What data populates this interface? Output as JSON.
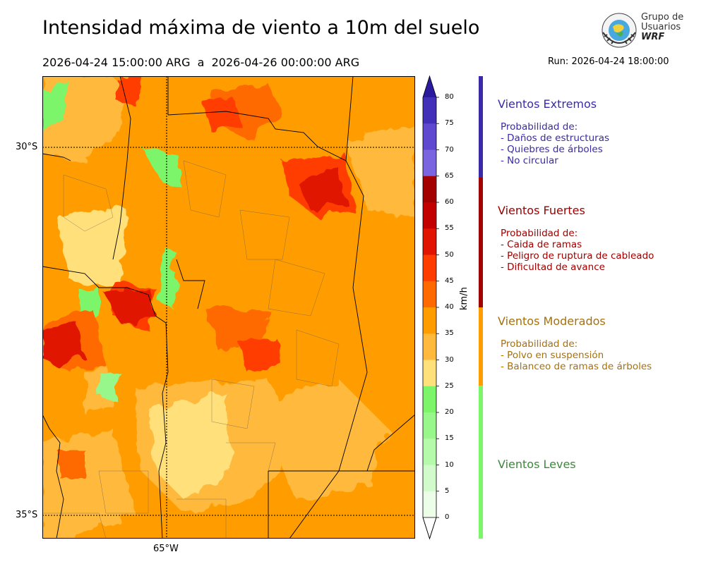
{
  "title": "Intensidad máxima de viento a 10m del suelo",
  "subtitle": "2026-04-24 15:00:00 ARG  a  2026-04-26 00:00:00 ARG",
  "run": "Run: 2026-04-24 18:00:00",
  "logo": {
    "line1": "Grupo de",
    "line2": "Usuarios",
    "line3": "WRF"
  },
  "map": {
    "lat_labels": [
      "30°S",
      "35°S"
    ],
    "lon_labels": [
      "65°W"
    ]
  },
  "colorbar": {
    "units": "km/h",
    "ticks": [
      "80",
      "75",
      "70",
      "65",
      "60",
      "55",
      "50",
      "45",
      "40",
      "35",
      "30",
      "25",
      "20",
      "15",
      "10",
      "5",
      "0"
    ],
    "colors": [
      "#2a1a9e",
      "#4330b8",
      "#5f49d0",
      "#7a64e0",
      "#a30000",
      "#c20000",
      "#e01400",
      "#ff3c00",
      "#ff6a00",
      "#ff9d00",
      "#ffb93c",
      "#ffe07a",
      "#7cf56b",
      "#98f78a",
      "#b5f9aa",
      "#d2fbcb",
      "#ecfee8"
    ]
  },
  "categories": [
    {
      "title": "Vientos Extremos",
      "color": "#3a2aa8",
      "bar": "#3a2aa8",
      "lines": [
        "Probabilidad de:",
        "- Daños de estructuras",
        "- Quiebres de árboles",
        "- No circular"
      ]
    },
    {
      "title": "Vientos Fuertes",
      "color": "#a00000",
      "bar": "#a00000",
      "lines": [
        "Probabilidad de:",
        "- Caida de ramas",
        "- Peligro de ruptura de cableado",
        "- Dificultad de avance"
      ]
    },
    {
      "title": "Vientos Moderados",
      "color": "#a8700a",
      "bar": "#ff9d00",
      "lines": [
        "Probabilidad de:",
        "- Polvo en suspensión",
        "- Balanceo de ramas de árboles"
      ]
    },
    {
      "title": "Vientos Leves",
      "color": "#3a8a3a",
      "bar": "#7cf56b",
      "lines": []
    }
  ]
}
